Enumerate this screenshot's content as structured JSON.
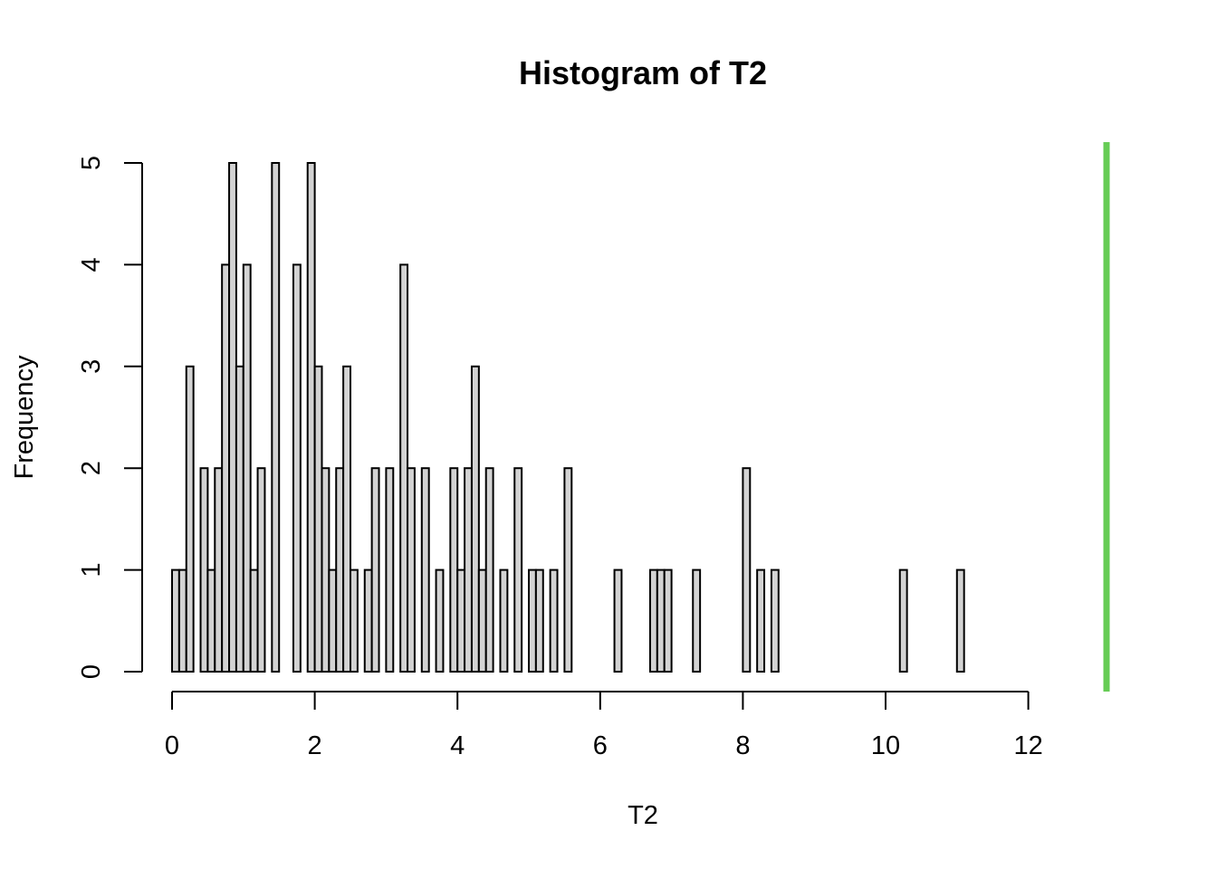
{
  "chart_data": {
    "type": "bar",
    "title": "Histogram of T2",
    "xlabel": "T2",
    "ylabel": "Frequency",
    "bin_width": 0.1,
    "xlim": [
      0,
      12
    ],
    "ylim": [
      0,
      5
    ],
    "x_ticks": [
      "0",
      "2",
      "4",
      "6",
      "8",
      "10",
      "12"
    ],
    "y_ticks": [
      "0",
      "1",
      "2",
      "3",
      "4",
      "5"
    ],
    "bar_fill": "#d3d3d3",
    "bar_stroke": "#000000",
    "grid": false,
    "values": [
      1,
      1,
      3,
      0,
      2,
      1,
      2,
      4,
      5,
      3,
      4,
      1,
      2,
      0,
      5,
      0,
      0,
      4,
      0,
      5,
      3,
      2,
      1,
      2,
      3,
      1,
      0,
      1,
      2,
      0,
      2,
      0,
      4,
      2,
      0,
      2,
      0,
      1,
      0,
      2,
      1,
      2,
      3,
      1,
      2,
      0,
      1,
      0,
      2,
      0,
      1,
      1,
      0,
      1,
      0,
      2,
      0,
      0,
      0,
      0,
      0,
      0,
      1,
      0,
      0,
      0,
      0,
      1,
      1,
      1,
      0,
      0,
      0,
      1,
      0,
      0,
      0,
      0,
      0,
      0,
      2,
      0,
      1,
      0,
      1,
      0,
      0,
      0,
      0,
      0,
      0,
      0,
      0,
      0,
      0,
      0,
      0,
      0,
      0,
      0,
      0,
      0,
      1,
      0,
      0,
      0,
      0,
      0,
      0,
      0,
      1
    ]
  },
  "decoration": {
    "right_bar_color": "#66cc55"
  }
}
